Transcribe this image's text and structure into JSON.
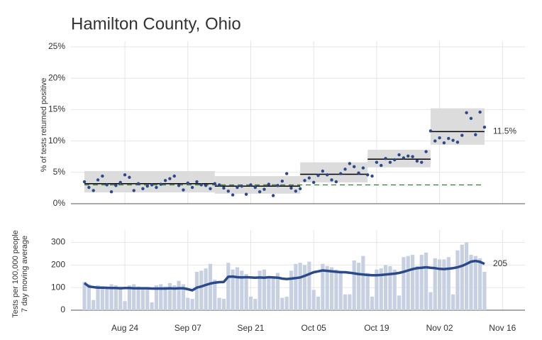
{
  "chart_data": [
    {
      "type": "scatter",
      "title": "Hamilton County, Ohio",
      "y_label": "% of tests returned positive",
      "ylim": [
        0,
        25
      ],
      "yticks": [
        {
          "value": 0,
          "label": "0%"
        },
        {
          "value": 5,
          "label": "5%"
        },
        {
          "value": 10,
          "label": "10%"
        },
        {
          "value": 15,
          "label": "15%"
        },
        {
          "value": 20,
          "label": "20%"
        },
        {
          "value": 25,
          "label": "25%"
        }
      ],
      "grid": true,
      "color": "#2b4a8b",
      "values": [
        3.5,
        2.6,
        2.1,
        3.8,
        4.4,
        3.0,
        1.9,
        2.9,
        3.4,
        4.6,
        4.2,
        2.1,
        3.2,
        2.4,
        2.8,
        3.0,
        2.6,
        3.1,
        3.7,
        4.0,
        4.4,
        2.9,
        2.2,
        3.3,
        2.6,
        3.5,
        3.0,
        2.9,
        2.4,
        3.2,
        3.0,
        2.5,
        2.0,
        1.4,
        2.6,
        2.8,
        1.5,
        3.0,
        2.6,
        1.9,
        2.3,
        3.1,
        1.3,
        2.9,
        3.6,
        4.8,
        2.5,
        2.0,
        2.4,
        3.7,
        4.1,
        3.4,
        4.5,
        5.2,
        4.6,
        3.8,
        3.5,
        4.8,
        5.5,
        6.4,
        5.9,
        4.9,
        5.7,
        4.6,
        4.4,
        6.6,
        6.1,
        7.2,
        6.6,
        7.0,
        7.8,
        7.3,
        7.6,
        7.5,
        6.8,
        6.6,
        8.3,
        11.6,
        10.0,
        10.5,
        9.7,
        10.4,
        10.1,
        9.8,
        10.9,
        14.5,
        13.6,
        11.0,
        14.6,
        12.2
      ],
      "segments": [
        {
          "start": "Aug 15",
          "end": "Sep 13",
          "value": 3.2,
          "band": [
            1.8,
            5.2
          ]
        },
        {
          "start": "Sep 13",
          "end": "Oct 02",
          "value": 2.8,
          "band": [
            1.6,
            4.4
          ]
        },
        {
          "start": "Oct 02",
          "end": "Oct 17",
          "value": 4.7,
          "band": [
            3.4,
            6.6
          ]
        },
        {
          "start": "Oct 17",
          "end": "Oct 31",
          "value": 7.1,
          "band": [
            5.8,
            8.6
          ]
        },
        {
          "start": "Oct 31",
          "end": "Nov 12",
          "value": 11.5,
          "band": [
            9.4,
            15.2
          ],
          "label": "11.5%"
        }
      ],
      "segment_color": "#000000",
      "band_color": "#dcdcdc",
      "reference": {
        "value": 3,
        "start": "Aug 15",
        "end": "Nov 12",
        "color": "#2e7d32"
      }
    },
    {
      "type": "bar",
      "y_label": [
        "Tests per 100,000 people",
        "7 day moving average"
      ],
      "ylim": [
        0,
        330
      ],
      "yticks": [
        0,
        100,
        200,
        300
      ],
      "grid": true,
      "xlim": [
        "Aug 12",
        "Nov 21"
      ],
      "xticks": [
        "Aug 24",
        "Sep 07",
        "Sep 21",
        "Oct 05",
        "Oct 19",
        "Nov 02",
        "Nov 16"
      ],
      "x": [
        "Aug 15",
        "Aug 16",
        "Aug 17",
        "Aug 18",
        "Aug 19",
        "Aug 20",
        "Aug 21",
        "Aug 22",
        "Aug 23",
        "Aug 24",
        "Aug 25",
        "Aug 26",
        "Aug 27",
        "Aug 28",
        "Aug 29",
        "Aug 30",
        "Aug 31",
        "Sep 01",
        "Sep 02",
        "Sep 03",
        "Sep 04",
        "Sep 05",
        "Sep 06",
        "Sep 07",
        "Sep 08",
        "Sep 09",
        "Sep 10",
        "Sep 11",
        "Sep 12",
        "Sep 13",
        "Sep 14",
        "Sep 15",
        "Sep 16",
        "Sep 17",
        "Sep 18",
        "Sep 19",
        "Sep 20",
        "Sep 21",
        "Sep 22",
        "Sep 23",
        "Sep 24",
        "Sep 25",
        "Sep 26",
        "Sep 27",
        "Sep 28",
        "Sep 29",
        "Sep 30",
        "Oct 01",
        "Oct 02",
        "Oct 03",
        "Oct 04",
        "Oct 05",
        "Oct 06",
        "Oct 07",
        "Oct 08",
        "Oct 09",
        "Oct 10",
        "Oct 11",
        "Oct 12",
        "Oct 13",
        "Oct 14",
        "Oct 15",
        "Oct 16",
        "Oct 17",
        "Oct 18",
        "Oct 19",
        "Oct 20",
        "Oct 21",
        "Oct 22",
        "Oct 23",
        "Oct 24",
        "Oct 25",
        "Oct 26",
        "Oct 27",
        "Oct 28",
        "Oct 29",
        "Oct 30",
        "Oct 31",
        "Nov 01",
        "Nov 02",
        "Nov 03",
        "Nov 04",
        "Nov 05",
        "Nov 06",
        "Nov 07",
        "Nov 08",
        "Nov 09",
        "Nov 10",
        "Nov 11",
        "Nov 12"
      ],
      "series": [
        {
          "color": "#c7d0e2",
          "values": [
            125,
            115,
            45,
            110,
            105,
            100,
            115,
            110,
            105,
            40,
            110,
            115,
            105,
            100,
            95,
            35,
            110,
            115,
            105,
            120,
            110,
            130,
            115,
            55,
            50,
            170,
            175,
            185,
            205,
            135,
            55,
            50,
            210,
            180,
            190,
            175,
            160,
            60,
            50,
            175,
            180,
            150,
            140,
            165,
            55,
            60,
            175,
            205,
            210,
            200,
            215,
            90,
            60,
            205,
            195,
            190,
            180,
            175,
            70,
            70,
            220,
            210,
            240,
            165,
            60,
            180,
            185,
            200,
            195,
            180,
            65,
            235,
            240,
            245,
            195,
            245,
            255,
            80,
            230,
            225,
            225,
            235,
            70,
            265,
            290,
            300,
            245,
            240,
            230,
            170
          ]
        },
        {
          "type": "line",
          "color": "#2b4a8b",
          "values": [
            120,
            105,
            102,
            100,
            100,
            99,
            98,
            98,
            97,
            98,
            98,
            97,
            97,
            97,
            97,
            96,
            96,
            96,
            96,
            97,
            96,
            97,
            97,
            93,
            88,
            100,
            105,
            112,
            118,
            122,
            124,
            125,
            148,
            149,
            146,
            145,
            146,
            145,
            144,
            145,
            144,
            146,
            145,
            144,
            140,
            138,
            140,
            142,
            145,
            152,
            160,
            168,
            172,
            176,
            174,
            172,
            170,
            168,
            168,
            166,
            163,
            160,
            158,
            156,
            155,
            155,
            156,
            158,
            160,
            162,
            165,
            170,
            176,
            182,
            186,
            188,
            190,
            188,
            186,
            183,
            182,
            184,
            186,
            190,
            196,
            205,
            215,
            218,
            214,
            205
          ]
        }
      ]
    }
  ]
}
